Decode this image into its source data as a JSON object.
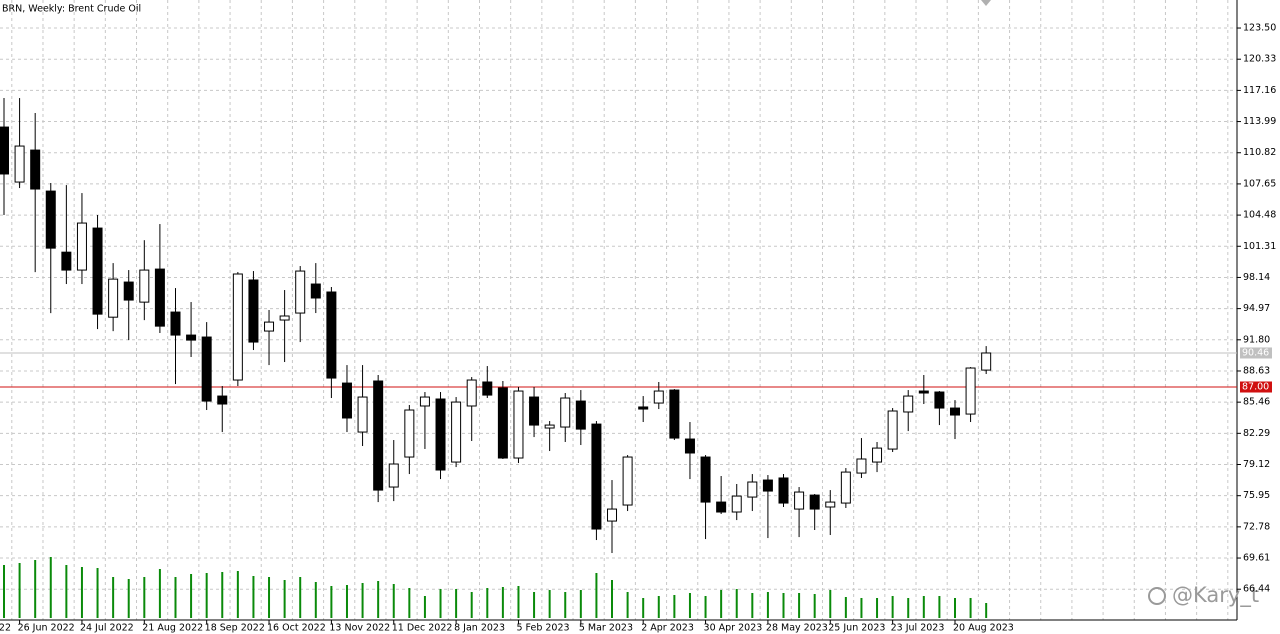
{
  "chart_data": {
    "type": "candlestick",
    "title": "BRN, Weekly:  Brent Crude Oil",
    "x_cut_label": "22",
    "categories": [
      null,
      "26 Jun 2022",
      null,
      null,
      null,
      "24 Jul 2022",
      null,
      null,
      null,
      "21 Aug 2022",
      null,
      null,
      null,
      "18 Sep 2022",
      null,
      null,
      null,
      "16 Oct 2022",
      null,
      null,
      null,
      "13 Nov 2022",
      null,
      null,
      null,
      "11 Dec 2022",
      null,
      null,
      null,
      "8 Jan 2023",
      null,
      null,
      null,
      "5 Feb 2023",
      null,
      null,
      null,
      "5 Mar 2023",
      null,
      null,
      null,
      "2 Apr 2023",
      null,
      null,
      null,
      "30 Apr 2023",
      null,
      null,
      null,
      "28 May 2023",
      null,
      null,
      null,
      "25 Jun 2023",
      null,
      null,
      null,
      "23 Jul 2023",
      null,
      null,
      null,
      "20 Aug 2023",
      null,
      null
    ],
    "open": [
      113.43,
      107.84,
      111.09,
      106.92,
      100.71,
      98.89,
      103.16,
      94.1,
      97.67,
      95.63,
      98.99,
      94.62,
      92.28,
      92.08,
      86.08,
      87.71,
      97.88,
      92.69,
      93.81,
      94.52,
      97.47,
      96.66,
      87.4,
      82.42,
      87.61,
      76.83,
      79.88,
      85.07,
      85.78,
      79.37,
      85.07,
      87.51,
      86.9,
      79.78,
      85.98,
      82.83,
      82.93,
      85.57,
      83.23,
      73.37,
      75.0,
      84.97,
      85.37,
      86.69,
      81.71,
      79.88,
      75.3,
      74.29,
      75.81,
      77.54,
      77.75,
      74.59,
      76.01,
      74.8,
      75.2,
      78.25,
      79.37,
      80.69,
      84.46,
      86.59,
      86.49,
      84.86,
      84.25,
      88.72
    ],
    "high": [
      116.38,
      116.38,
      114.86,
      107.74,
      107.53,
      106.72,
      104.49,
      99.6,
      98.89,
      101.93,
      103.57,
      97.06,
      95.64,
      93.6,
      87.1,
      98.69,
      98.79,
      94.83,
      96.86,
      99.3,
      99.6,
      97.17,
      89.23,
      89.23,
      88.22,
      81.61,
      85.17,
      86.49,
      86.49,
      85.98,
      88.01,
      89.13,
      87.61,
      87.0,
      87.0,
      83.54,
      86.39,
      86.69,
      83.54,
      77.54,
      80.08,
      86.08,
      87.51,
      86.79,
      83.44,
      80.08,
      77.95,
      77.14,
      78.15,
      78.05,
      78.15,
      76.83,
      76.12,
      76.52,
      78.76,
      81.81,
      81.41,
      84.86,
      86.69,
      88.22,
      86.59,
      85.67,
      89.03,
      91.16
    ],
    "low": [
      104.49,
      107.23,
      98.68,
      94.51,
      97.47,
      97.47,
      92.89,
      92.68,
      91.77,
      93.8,
      92.49,
      87.3,
      90.05,
      84.66,
      82.42,
      87.1,
      90.76,
      89.23,
      89.54,
      91.57,
      94.52,
      85.88,
      82.42,
      81.0,
      75.3,
      75.4,
      78.15,
      80.7,
      77.64,
      78.86,
      81.51,
      85.88,
      79.68,
      79.27,
      81.91,
      80.49,
      81.41,
      81.1,
      71.44,
      70.12,
      74.39,
      83.44,
      84.76,
      81.61,
      77.64,
      71.54,
      74.09,
      73.47,
      74.39,
      71.64,
      74.8,
      71.74,
      72.46,
      71.95,
      74.7,
      77.75,
      78.35,
      80.39,
      82.52,
      85.27,
      83.13,
      81.71,
      83.44,
      88.32
    ],
    "close": [
      108.66,
      111.5,
      107.13,
      101.12,
      98.89,
      103.67,
      94.41,
      97.97,
      95.84,
      98.89,
      93.19,
      92.28,
      91.77,
      85.57,
      85.27,
      98.49,
      91.57,
      93.6,
      94.22,
      98.79,
      96.05,
      87.91,
      83.85,
      85.98,
      76.52,
      79.17,
      84.66,
      85.98,
      78.56,
      85.47,
      87.71,
      86.18,
      79.78,
      86.59,
      83.13,
      83.13,
      85.88,
      82.72,
      72.56,
      74.59,
      79.88,
      84.76,
      86.59,
      81.81,
      80.29,
      75.3,
      74.29,
      75.91,
      77.34,
      76.42,
      75.2,
      76.32,
      74.59,
      75.3,
      78.35,
      79.68,
      80.79,
      84.56,
      86.08,
      86.39,
      84.86,
      84.15,
      88.93,
      90.46
    ],
    "volume": [
      53,
      55,
      58,
      61,
      53,
      51,
      50,
      41,
      39,
      41,
      49,
      41,
      44,
      45,
      46,
      47,
      42,
      41,
      38,
      41,
      36,
      32,
      33,
      35,
      37,
      34,
      30,
      22,
      29,
      29,
      26,
      30,
      31,
      32,
      26,
      28,
      26,
      28,
      45,
      38,
      26,
      20,
      22,
      23,
      25,
      22,
      28,
      29,
      25,
      26,
      25,
      25,
      24,
      28,
      21,
      20,
      20,
      22,
      20,
      22,
      22,
      20,
      20,
      15
    ],
    "up_color": "#ffffff",
    "down_color": "#000000",
    "volume_color": "#0a8a0a",
    "ylim": [
      63.31,
      126.35
    ],
    "yticks": [
      {
        "value": 123.5,
        "label": "123.50"
      },
      120.33,
      117.16,
      113.99,
      110.82,
      107.65,
      104.48,
      101.31,
      98.14,
      94.97,
      {
        "value": 91.8,
        "label": "91.80"
      },
      88.63,
      85.46,
      82.29,
      79.12,
      75.95,
      72.78,
      69.61,
      66.44
    ],
    "bid": 90.46,
    "bid_color": "#c0c0c0",
    "level": {
      "value": 87,
      "label": "87.00"
    },
    "level_color": "#d01010",
    "grid": true,
    "watermark": "@Kary_t"
  }
}
